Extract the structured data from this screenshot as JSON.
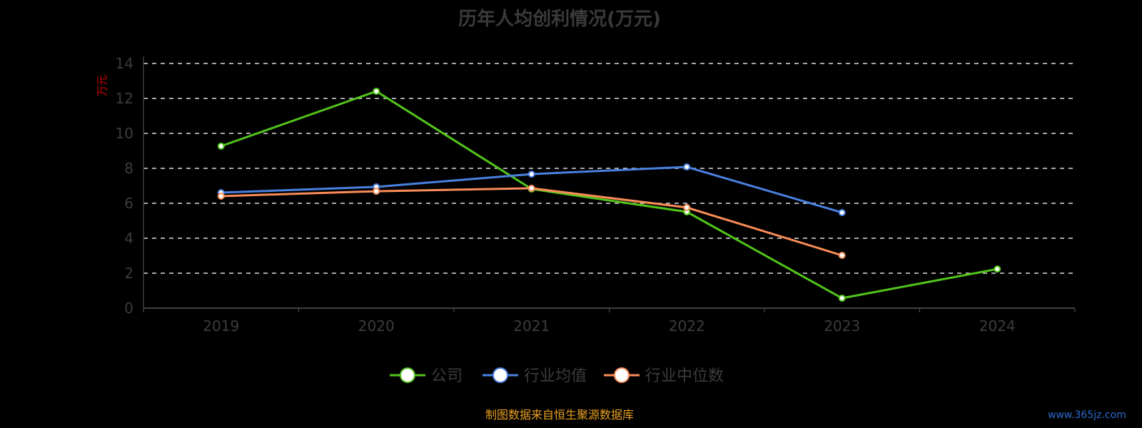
{
  "chart_data": {
    "type": "line",
    "title": "历年人均创利情况(万元)",
    "ylabel": "万元",
    "xlabel": "",
    "categories": [
      "2019",
      "2020",
      "2021",
      "2022",
      "2023",
      "2024"
    ],
    "ylim": [
      0,
      14
    ],
    "yticks": [
      0,
      2,
      4,
      6,
      8,
      10,
      12,
      14
    ],
    "grid": true,
    "legend_position": "bottom",
    "series": [
      {
        "name": "公司",
        "color": "#52c41a",
        "values": [
          9.27,
          12.41,
          6.82,
          5.51,
          0.57,
          2.24
        ]
      },
      {
        "name": "行业均值",
        "color": "#4a80e0",
        "values": [
          6.61,
          6.94,
          7.67,
          8.08,
          5.47,
          null
        ]
      },
      {
        "name": "行业中位数",
        "color": "#fa8c58",
        "values": [
          6.41,
          6.69,
          6.86,
          5.76,
          3.02,
          null
        ]
      }
    ]
  },
  "source": "制图数据来自恒生聚源数据库",
  "watermark": "www.365jz.com"
}
